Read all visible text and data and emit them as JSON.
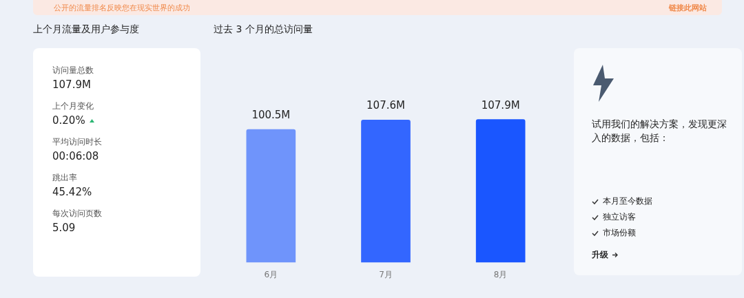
{
  "chart_data": [
    {
      "type": "other",
      "annotations": [
        "公开的流量排名反映您在现实世界的成功",
        "链接此网站"
      ]
    },
    {
      "type": "other",
      "title": "上个月流量及用户参与度",
      "annotations": [
        "访问量总数",
        "107.9M",
        "上个月变化",
        "0.20%",
        "平均访问时长",
        "00:06:08",
        "跳出率",
        "45.42%",
        "每次访问页数",
        "5.09"
      ]
    },
    {
      "type": "bar",
      "title": "过去 3 个月的总访问量",
      "categories": [
        "6月",
        "7月",
        "8月"
      ],
      "values": [
        100.5,
        107.6,
        107.9
      ],
      "colors": [
        "#6f94fb",
        "#3366ff",
        "#1a56ff"
      ],
      "value_labels": [
        "100.5M",
        "107.6M",
        "107.9M"
      ]
    },
    {
      "type": "other",
      "annotations": [
        "试用我们的解决方案，发现更深入的数据，包括：",
        "本月至今数据",
        "独立访客",
        "市场份额",
        "升级"
      ]
    }
  ]
}
